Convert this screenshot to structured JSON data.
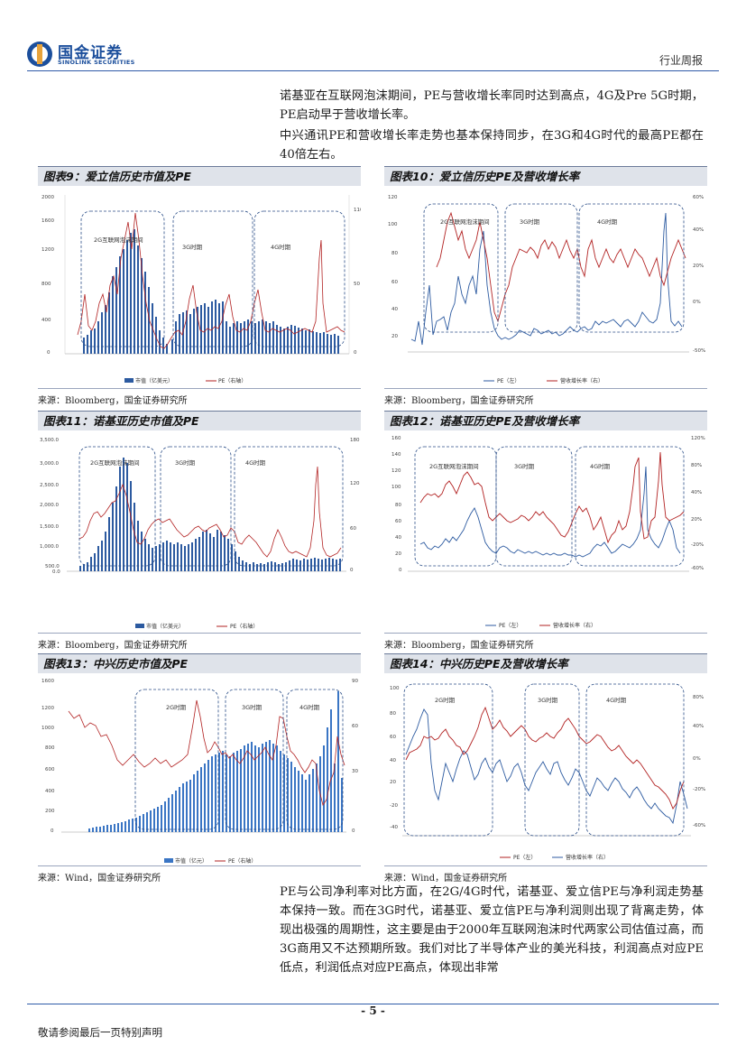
{
  "header": {
    "logo_cn": "国金证券",
    "logo_en": "SINOLINK SECURITIES",
    "report_type": "行业周报"
  },
  "paragraphs": {
    "p1": "诺基亚在互联网泡沫期间，PE与营收增长率同时达到高点，4G及Pre 5G时期，PE启动早于营收增长率。",
    "p2": "中兴通讯PE和营收增长率走势也基本保持同步，在3G和4G时代的最高PE都在40倍左右。",
    "p3": "PE与公司净利率对比方面，在2G/4G时代，诺基亚、爱立信PE与净利润走势基本保持一致。而在3G时代，诺基亚、爱立信PE与净利润则出现了背离走势，体现出极强的周期性，这主要是由于2000年互联网泡沫时代两家公司估值过高，而3G商用又不达预期所致。我们对比了半导体产业的美光科技，利润高点对应PE低点，利润低点对应PE高点，体现出非常"
  },
  "charts": [
    {
      "title": "图表9：爱立信历史市值及PE",
      "source": "来源：Bloomberg，国金证券研究所",
      "eras": [
        "2G互联网泡沫期间",
        "3G时期",
        "4G时期"
      ],
      "legend": [
        "市值（亿美元）",
        "PE（右轴）"
      ]
    },
    {
      "title": "图表10：爱立信历史PE及营收增长率",
      "source": "来源：Bloomberg，国金证券研究所",
      "eras": [
        "2G互联网泡沫期间",
        "3G时期",
        "4G时期"
      ],
      "legend": [
        "PE（左）",
        "营收增长率（右）"
      ]
    },
    {
      "title": "图表11：诺基亚历史市值及PE",
      "source": "来源：Bloomberg，国金证券研究所",
      "eras": [
        "2G互联网泡沫期间",
        "3G时期",
        "4G时期"
      ],
      "legend": [
        "市值（亿美元）",
        "PE（右轴）"
      ]
    },
    {
      "title": "图表12：诺基亚历史PE及营收增长率",
      "source": "来源：Bloomberg，国金证券研究所",
      "eras": [
        "2G互联网泡沫期间",
        "3G时期",
        "4G时期"
      ],
      "legend": [
        "PE（左）",
        "营收增长率（右）"
      ]
    },
    {
      "title": "图表13：中兴历史市值及PE",
      "source": "来源：Wind，国金证券研究所",
      "eras": [
        "2G时期",
        "3G时期",
        "4G时期"
      ],
      "legend": [
        "市值（亿元）",
        "PE（右轴）"
      ]
    },
    {
      "title": "图表14：中兴历史PE及营收增长率",
      "source": "来源：Wind，国金证券研究所",
      "eras": [
        "2G时期",
        "3G时期",
        "4G时期"
      ],
      "legend": [
        "PE（左）",
        "营收增长率（右）"
      ]
    }
  ],
  "footer": {
    "page_number": "- 5 -",
    "disclaimer": "敬请参阅最后一页特别声明"
  }
}
